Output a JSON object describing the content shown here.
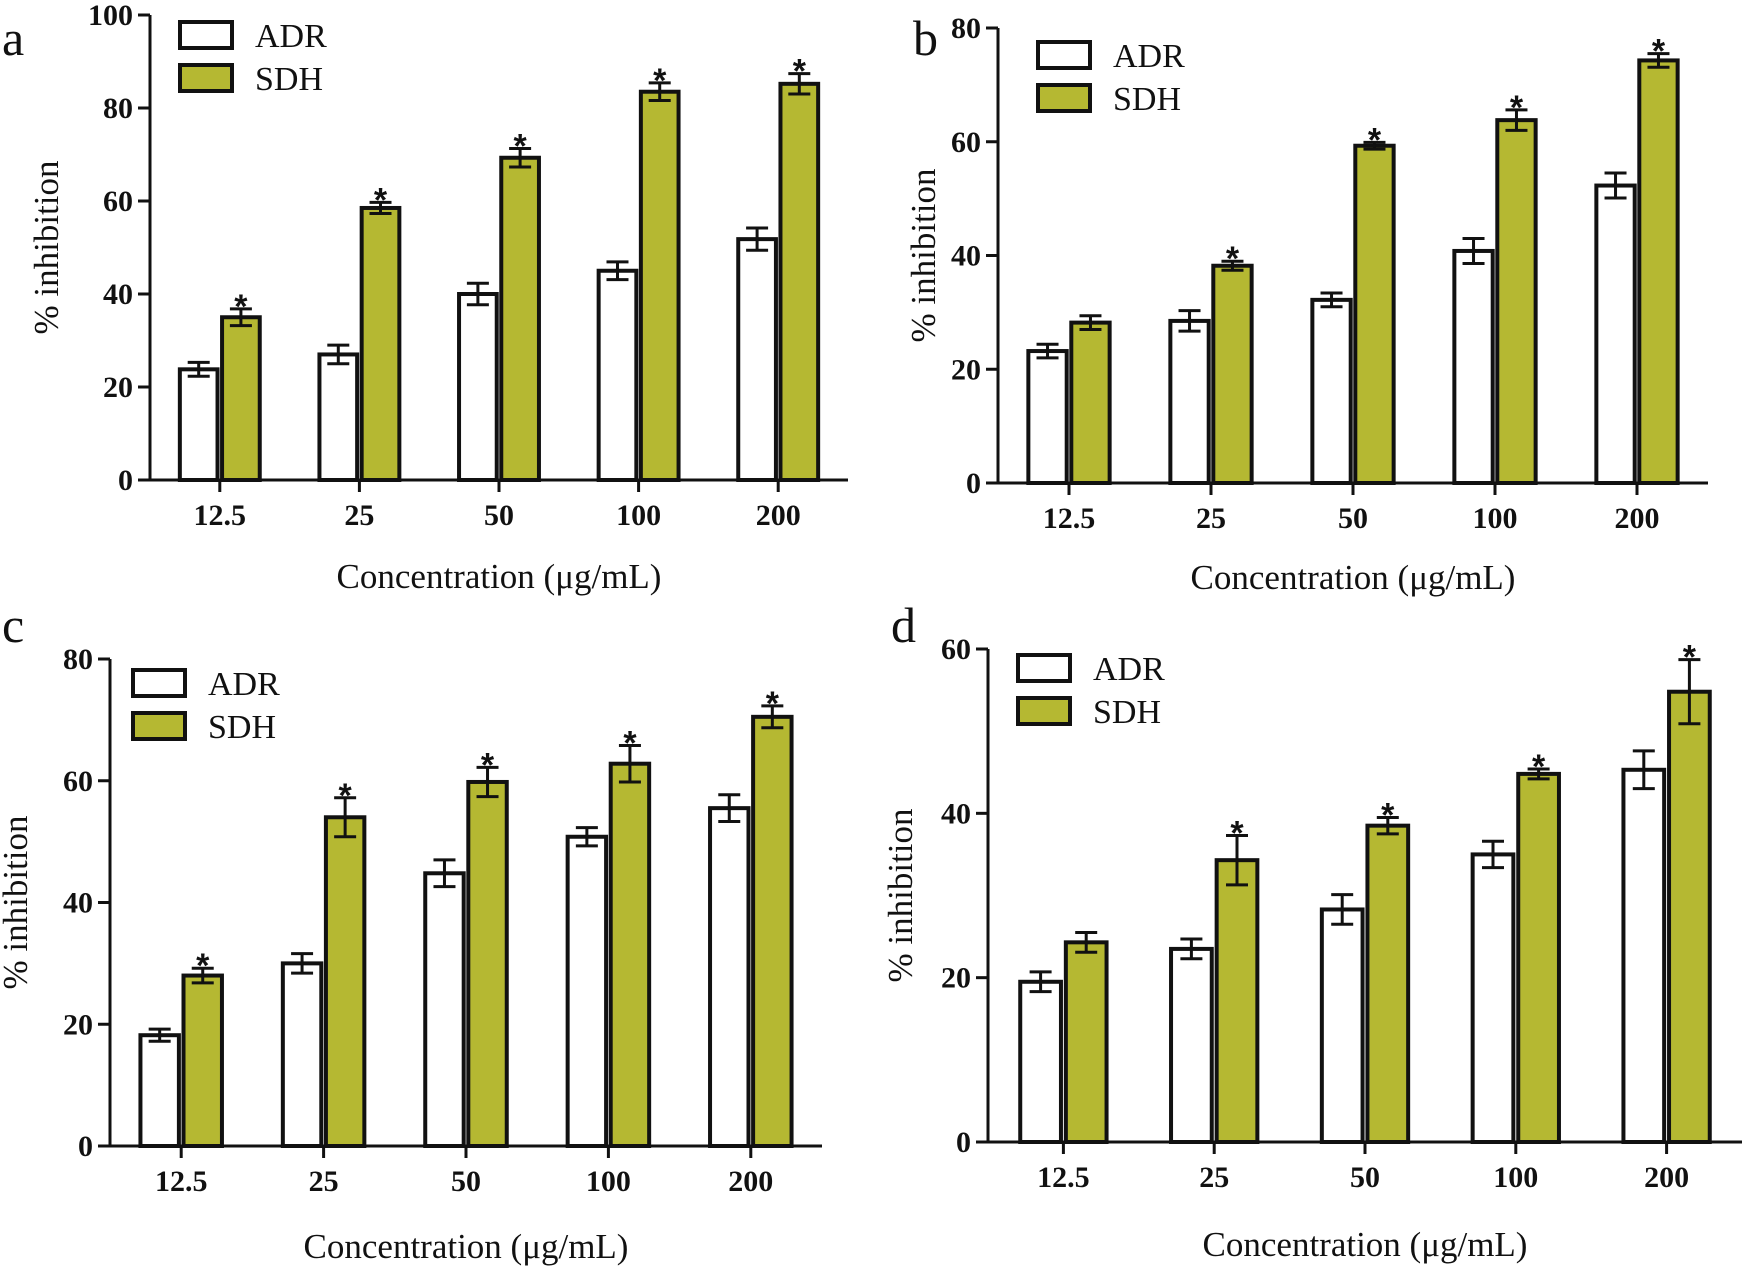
{
  "colors": {
    "adr": "#ffffff",
    "sdh": "#b5b832",
    "outline": "#111111"
  },
  "chart_data": [
    {
      "panel": "a",
      "type": "bar",
      "categories": [
        "12.5",
        "25",
        "50",
        "100",
        "200"
      ],
      "xlabel": "Concentration (μg/mL)",
      "ylabel": "% inhibition",
      "ylim": [
        0,
        100
      ],
      "yticks": [
        "0",
        "20",
        "40",
        "60",
        "80",
        "100"
      ],
      "grid": false,
      "legend_position": "top-left",
      "series": [
        {
          "name": "ADR",
          "values": [
            23.8,
            27.0,
            40.0,
            45.0,
            51.8
          ],
          "errors": [
            1.5,
            2.0,
            2.3,
            1.9,
            2.4
          ],
          "sig": [
            false,
            false,
            false,
            false,
            false
          ]
        },
        {
          "name": "SDH",
          "values": [
            35.0,
            58.5,
            69.3,
            83.5,
            85.2
          ],
          "errors": [
            1.8,
            1.2,
            2.0,
            1.9,
            2.2
          ],
          "sig": [
            true,
            true,
            true,
            true,
            true
          ]
        }
      ],
      "sig_marker": "*"
    },
    {
      "panel": "b",
      "type": "bar",
      "categories": [
        "12.5",
        "25",
        "50",
        "100",
        "200"
      ],
      "xlabel": "Concentration (μg/mL)",
      "ylabel": "% inhibition",
      "ylim": [
        0,
        80
      ],
      "yticks": [
        "0",
        "20",
        "40",
        "60",
        "80"
      ],
      "grid": false,
      "legend_position": "top-left",
      "series": [
        {
          "name": "ADR",
          "values": [
            23.2,
            28.5,
            32.2,
            40.8,
            52.3
          ],
          "errors": [
            1.2,
            1.8,
            1.2,
            2.2,
            2.2
          ],
          "sig": [
            false,
            false,
            false,
            false,
            false
          ]
        },
        {
          "name": "SDH",
          "values": [
            28.2,
            38.2,
            59.3,
            63.8,
            74.3
          ],
          "errors": [
            1.2,
            0.8,
            0.6,
            1.8,
            1.2
          ],
          "sig": [
            false,
            true,
            true,
            true,
            true
          ]
        }
      ],
      "sig_marker": "*"
    },
    {
      "panel": "c",
      "type": "bar",
      "categories": [
        "12.5",
        "25",
        "50",
        "100",
        "200"
      ],
      "xlabel": "Concentration (μg/mL)",
      "ylabel": "% inhibition",
      "ylim": [
        0,
        80
      ],
      "yticks": [
        "0",
        "20",
        "40",
        "60",
        "80"
      ],
      "grid": false,
      "legend_position": "top-left",
      "series": [
        {
          "name": "ADR",
          "values": [
            18.2,
            30.0,
            44.8,
            50.8,
            55.5
          ],
          "errors": [
            1.0,
            1.6,
            2.2,
            1.5,
            2.2
          ],
          "sig": [
            false,
            false,
            false,
            false,
            false
          ]
        },
        {
          "name": "SDH",
          "values": [
            28.0,
            54.0,
            59.8,
            62.8,
            70.5
          ],
          "errors": [
            1.2,
            3.2,
            2.4,
            3.0,
            1.8
          ],
          "sig": [
            true,
            true,
            true,
            true,
            true
          ]
        }
      ],
      "sig_marker": "*"
    },
    {
      "panel": "d",
      "type": "bar",
      "categories": [
        "12.5",
        "25",
        "50",
        "100",
        "200"
      ],
      "xlabel": "Concentration (μg/mL)",
      "ylabel": "% inhibition",
      "ylim": [
        0,
        60
      ],
      "yticks": [
        "0",
        "20",
        "40",
        "60"
      ],
      "grid": false,
      "legend_position": "top-left",
      "series": [
        {
          "name": "ADR",
          "values": [
            19.5,
            23.5,
            28.3,
            35.0,
            45.3
          ],
          "errors": [
            1.2,
            1.2,
            1.8,
            1.6,
            2.3
          ],
          "sig": [
            false,
            false,
            false,
            false,
            false
          ]
        },
        {
          "name": "SDH",
          "values": [
            24.3,
            34.3,
            38.5,
            44.8,
            54.8
          ],
          "errors": [
            1.2,
            3.0,
            1.0,
            0.6,
            3.9
          ],
          "sig": [
            false,
            true,
            true,
            true,
            true
          ]
        }
      ],
      "sig_marker": "*"
    }
  ]
}
